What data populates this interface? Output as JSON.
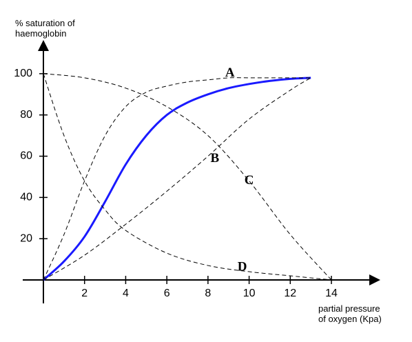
{
  "chart_data": {
    "type": "line",
    "y_label": [
      "% saturation of",
      "haemoglobin"
    ],
    "x_label": [
      "partial pressure",
      "of oxygen (Kpa)"
    ],
    "xlim": [
      0,
      16.3
    ],
    "ylim": [
      0,
      115
    ],
    "xticks": [
      2,
      4,
      6,
      8,
      10,
      12,
      14
    ],
    "yticks": [
      20,
      40,
      60,
      80,
      100
    ],
    "series": [
      {
        "color": "#1a1aff",
        "dash": false,
        "x": [
          0,
          1,
          2,
          3,
          4,
          5,
          6,
          7,
          8,
          9,
          10,
          11,
          12,
          13
        ],
        "values": [
          0,
          9,
          21,
          38,
          56,
          70,
          80,
          86,
          90,
          93,
          95,
          96.5,
          97.5,
          98
        ]
      },
      {
        "name": "A",
        "color": "#000000",
        "dash": true,
        "x": [
          0,
          1,
          2,
          3,
          4,
          5,
          6,
          7,
          8,
          9,
          10,
          11,
          12,
          13
        ],
        "values": [
          0,
          22,
          48,
          70,
          84,
          91,
          94,
          96,
          97,
          98,
          98,
          98,
          98,
          98
        ]
      },
      {
        "name": "B",
        "color": "#000000",
        "dash": true,
        "x": [
          0,
          2,
          4,
          6,
          8,
          10,
          12,
          13
        ],
        "values": [
          0,
          12,
          27,
          43,
          60,
          78,
          92,
          98
        ]
      },
      {
        "name": "C",
        "color": "#000000",
        "dash": true,
        "x": [
          0,
          2,
          4,
          6,
          8,
          10,
          12,
          14
        ],
        "values": [
          100,
          98,
          93,
          84,
          70,
          48,
          22,
          0
        ]
      },
      {
        "name": "D",
        "color": "#000000",
        "dash": true,
        "x": [
          0,
          1,
          2,
          3,
          4,
          6,
          8,
          10,
          12,
          14
        ],
        "values": [
          100,
          70,
          48,
          34,
          24,
          13,
          7,
          4,
          2,
          0
        ]
      }
    ]
  }
}
